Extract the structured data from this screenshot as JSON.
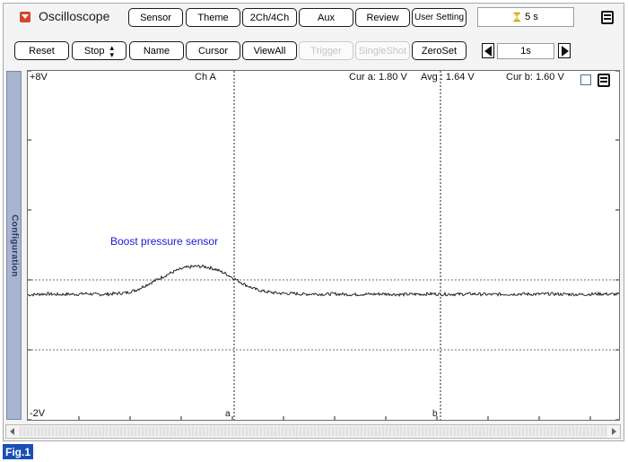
{
  "app": {
    "title": "Oscilloscope"
  },
  "toolbar_top": {
    "buttons": [
      "Sensor",
      "Theme",
      "2Ch/4Ch",
      "Aux",
      "Review",
      "User Setting"
    ],
    "timer": "5 s"
  },
  "toolbar_bottom": {
    "reset": "Reset",
    "stop": "Stop",
    "name": "Name",
    "cursor": "Cursor",
    "viewall": "ViewAll",
    "trigger": "Trigger",
    "singleshot": "SingleShot",
    "zeroset": "ZeroSet",
    "timebase": "1s"
  },
  "sidebar": {
    "tab_label": "Configuration"
  },
  "plot": {
    "y_top_label": "+8V",
    "y_bottom_label": "-2V",
    "channel_label": "Ch A",
    "cursor_a_readout": "Cur a: 1.80 V",
    "avg_readout": "Avg : 1.64 V",
    "cursor_b_readout": "Cur b: 1.60 V",
    "signal_label": "Boost pressure sensor",
    "cursor_a_marker": "a",
    "cursor_b_marker": "b"
  },
  "figure_label": "Fig.1",
  "colors": {
    "signal_label": "#1a1ad6",
    "app_icon": "#d9452c",
    "config_tab": "#a7b5d0",
    "figure_label_bg": "#1a4fb4"
  },
  "chart_data": {
    "type": "line",
    "title": "",
    "ylim": [
      -2,
      8
    ],
    "y_unit": "V",
    "cursor_a_value": 1.8,
    "cursor_b_value": 1.6,
    "average": 1.64,
    "series": [
      {
        "name": "Boost pressure sensor",
        "baseline": 1.6,
        "peak": 2.4,
        "values": [
          1.58,
          1.6,
          1.61,
          1.59,
          1.6,
          1.6,
          1.62,
          1.59,
          1.6,
          1.62,
          1.64,
          1.72,
          1.86,
          2.0,
          2.14,
          2.27,
          2.36,
          2.4,
          2.39,
          2.32,
          2.2,
          2.04,
          1.88,
          1.75,
          1.68,
          1.64,
          1.62,
          1.62,
          1.6,
          1.61,
          1.6,
          1.61,
          1.6,
          1.59,
          1.6,
          1.6,
          1.61,
          1.6,
          1.59,
          1.6,
          1.6,
          1.61,
          1.6,
          1.6,
          1.6,
          1.61,
          1.6,
          1.59,
          1.6,
          1.6,
          1.61,
          1.6,
          1.6,
          1.61,
          1.6,
          1.6,
          1.59,
          1.6,
          1.61,
          1.6,
          1.6
        ]
      }
    ]
  }
}
